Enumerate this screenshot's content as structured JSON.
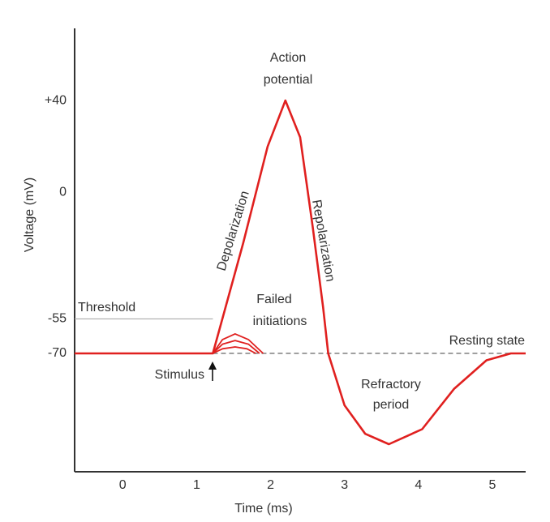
{
  "chart_data": {
    "type": "line",
    "xlabel": "Time (ms)",
    "ylabel": "Voltage (mV)",
    "xlim": [
      -0.65,
      5.45
    ],
    "xticks": [
      0,
      1,
      2,
      3,
      4,
      5
    ],
    "ylim": [
      -121.5,
      71.4
    ],
    "yticks": [
      {
        "value": 40,
        "label": "+40"
      },
      0,
      -55,
      -70
    ],
    "grid": false,
    "series": [
      {
        "color": "#e0201f",
        "x": [
          -0.65,
          1.22,
          1.63,
          1.96,
          2.2,
          2.4,
          2.57,
          2.71,
          2.78,
          3.0,
          3.28,
          3.6,
          4.05,
          4.48,
          4.92,
          5.25,
          5.45
        ],
        "values": [
          -70,
          -70,
          -22,
          20,
          40,
          24,
          -15,
          -50,
          -70,
          -92.6,
          -105,
          -109.5,
          -103,
          -85.5,
          -73,
          -70,
          -70
        ]
      },
      {
        "color": "#e0201f",
        "x": [
          1.22,
          1.35,
          1.52,
          1.7,
          1.9
        ],
        "values": [
          -70,
          -64,
          -61.5,
          -64,
          -70
        ]
      },
      {
        "color": "#e0201f",
        "x": [
          1.22,
          1.35,
          1.52,
          1.7,
          1.85
        ],
        "values": [
          -70,
          -66,
          -64.4,
          -66,
          -70
        ]
      },
      {
        "color": "#e0201f",
        "x": [
          1.22,
          1.35,
          1.52,
          1.68,
          1.8
        ],
        "values": [
          -70,
          -68,
          -67.2,
          -68,
          -70
        ]
      }
    ],
    "annotations": {
      "action": "Action",
      "potential": "potential",
      "threshold": "Threshold",
      "failed": "Failed",
      "initiations": "initiations",
      "resting": "Resting state",
      "stimulus": "Stimulus",
      "refractory": "Refractory",
      "period": "period",
      "depolarization": "Depolarization",
      "repolarization": "Repolarization"
    }
  }
}
